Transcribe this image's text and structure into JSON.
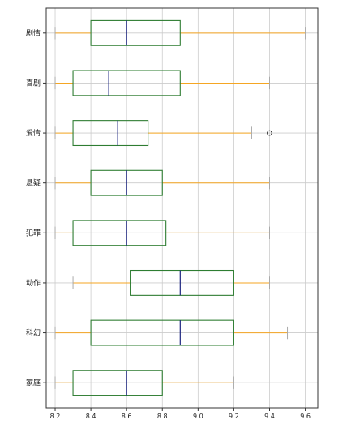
{
  "chart_data": {
    "type": "boxplot",
    "orientation": "horizontal",
    "title": "",
    "xlabel": "",
    "ylabel": "",
    "xlim": [
      8.15,
      9.67
    ],
    "xticks": [
      "8.2",
      "8.4",
      "8.6",
      "8.8",
      "9.0",
      "9.2",
      "9.4",
      "9.6"
    ],
    "grid": true,
    "colors": {
      "box": "#2e7d32",
      "median": "#1a237e",
      "whisker": "#f5a623",
      "cap": "#aaaaaa",
      "flier": "#111111",
      "grid": "#cccccc",
      "axis": "#333333"
    },
    "categories": [
      "剧情",
      "喜剧",
      "爱情",
      "悬疑",
      "犯罪",
      "动作",
      "科幻",
      "家庭"
    ],
    "boxes": [
      {
        "category": "剧情",
        "min": 8.2,
        "q1": 8.4,
        "median": 8.6,
        "q3": 8.9,
        "max": 9.6,
        "fliers": []
      },
      {
        "category": "喜剧",
        "min": 8.2,
        "q1": 8.3,
        "median": 8.5,
        "q3": 8.9,
        "max": 9.4,
        "fliers": []
      },
      {
        "category": "爱情",
        "min": 8.2,
        "q1": 8.3,
        "median": 8.55,
        "q3": 8.72,
        "max": 9.3,
        "fliers": [
          9.4
        ]
      },
      {
        "category": "悬疑",
        "min": 8.2,
        "q1": 8.4,
        "median": 8.6,
        "q3": 8.8,
        "max": 9.4,
        "fliers": []
      },
      {
        "category": "犯罪",
        "min": 8.2,
        "q1": 8.3,
        "median": 8.6,
        "q3": 8.82,
        "max": 9.4,
        "fliers": []
      },
      {
        "category": "动作",
        "min": 8.3,
        "q1": 8.62,
        "median": 8.9,
        "q3": 9.2,
        "max": 9.4,
        "fliers": []
      },
      {
        "category": "科幻",
        "min": 8.2,
        "q1": 8.4,
        "median": 8.9,
        "q3": 9.2,
        "max": 9.5,
        "fliers": []
      },
      {
        "category": "家庭",
        "min": 8.2,
        "q1": 8.3,
        "median": 8.6,
        "q3": 8.8,
        "max": 9.2,
        "fliers": []
      }
    ]
  }
}
